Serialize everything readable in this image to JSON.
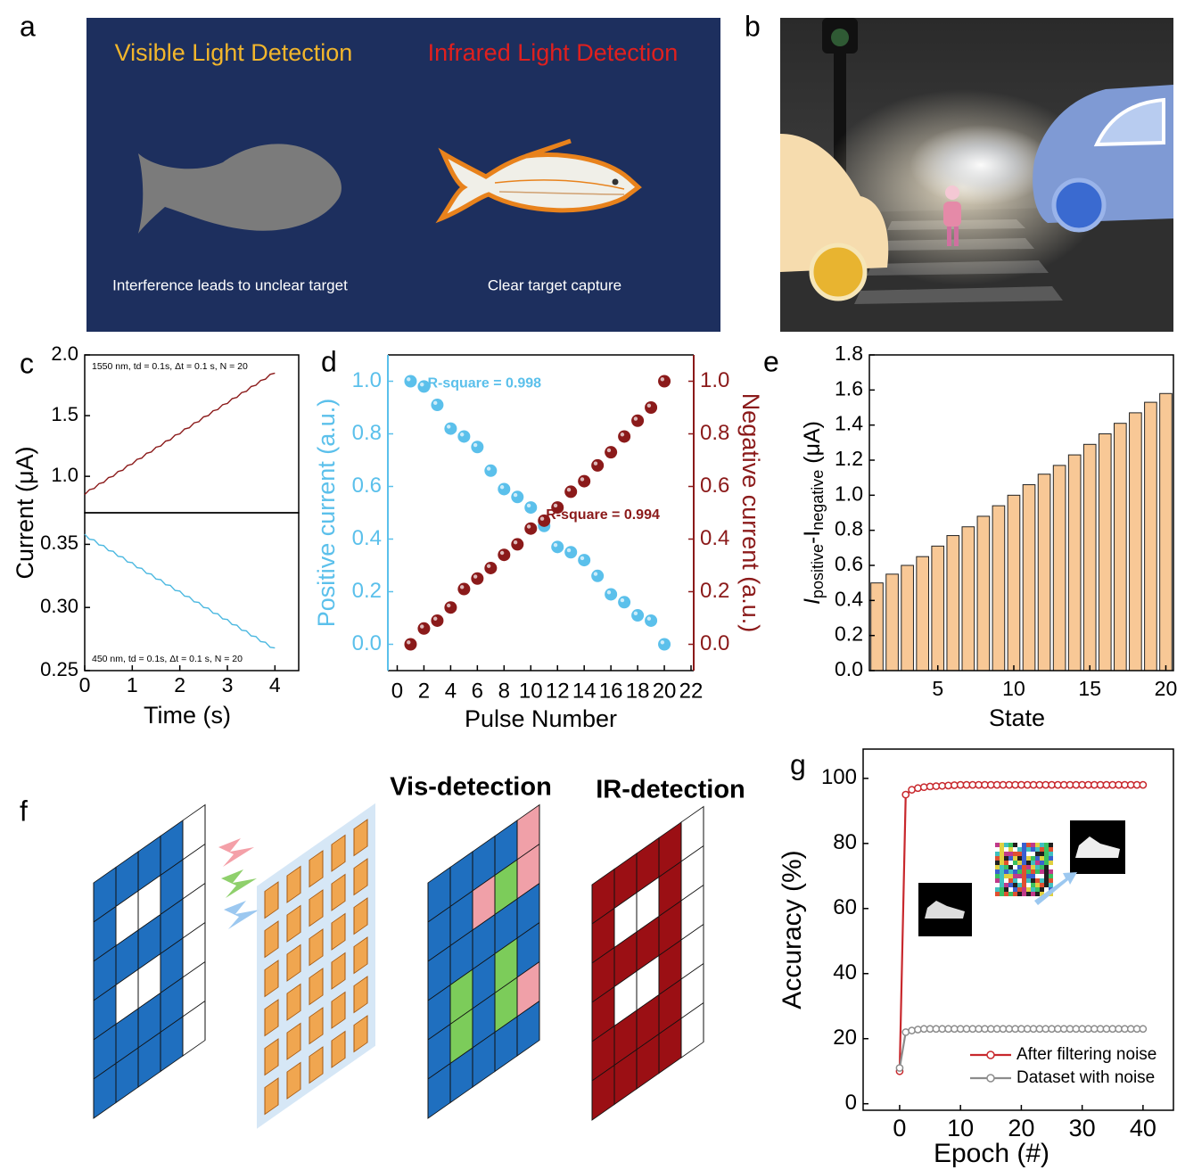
{
  "panel_labels": [
    "a",
    "b",
    "c",
    "d",
    "e",
    "f",
    "g"
  ],
  "panel_a": {
    "left_title": "Visible Light Detection",
    "right_title": "Infrared Light Detection",
    "left_caption": "Interference leads to unclear target",
    "right_caption": "Clear target capture"
  },
  "panel_f": {
    "vis_title": "Vis-detection",
    "ir_title": "IR-detection"
  },
  "chart_data": [
    {
      "type": "line",
      "x_label": "Time (s)",
      "y_label": "Current (μA)",
      "x": [
        0,
        0.1,
        0.2,
        0.3,
        0.4,
        0.5,
        0.6,
        0.7,
        0.8,
        0.9,
        1,
        1.1,
        1.2,
        1.3,
        1.4,
        1.5,
        1.6,
        1.7,
        1.8,
        1.9,
        2,
        2.1,
        2.2,
        2.3,
        2.4,
        2.5,
        2.6,
        2.7,
        2.8,
        2.9,
        3,
        3.1,
        3.2,
        3.3,
        3.4,
        3.5,
        3.6,
        3.7,
        3.8,
        3.9,
        4
      ],
      "xlim": [
        0,
        4.5
      ],
      "xticks": [
        0,
        1,
        2,
        3,
        4
      ],
      "panels": [
        {
          "annotation": "1550 nm, td = 0.1s, Δt = 0.1 s, N = 20",
          "ylim": [
            0.7,
            2.0
          ],
          "yticks": [
            {
              "value": 1,
              "label": "1.0"
            },
            1.5,
            {
              "value": 2,
              "label": "2.0"
            }
          ],
          "series": [
            {
              "color": "#8b1a1a",
              "values": [
                0.85,
                0.89,
                0.9,
                0.94,
                0.95,
                0.99,
                1.0,
                1.04,
                1.05,
                1.09,
                1.1,
                1.14,
                1.15,
                1.19,
                1.2,
                1.24,
                1.25,
                1.29,
                1.3,
                1.34,
                1.35,
                1.39,
                1.4,
                1.44,
                1.45,
                1.49,
                1.5,
                1.54,
                1.55,
                1.59,
                1.6,
                1.64,
                1.65,
                1.69,
                1.7,
                1.74,
                1.75,
                1.79,
                1.8,
                1.84,
                1.85
              ]
            }
          ]
        },
        {
          "annotation": "450 nm, td = 0.1s, Δt = 0.1 s, N = 20",
          "ylim": [
            0.25,
            0.375
          ],
          "yticks": [
            0.25,
            {
              "value": 0.3,
              "label": "0.30"
            },
            0.35
          ],
          "series": [
            {
              "color": "#4bb8e0",
              "values": [
                0.358,
                0.354,
                0.3535,
                0.3495,
                0.349,
                0.345,
                0.3445,
                0.3405,
                0.34,
                0.336,
                0.3355,
                0.3315,
                0.331,
                0.327,
                0.3265,
                0.3225,
                0.322,
                0.318,
                0.3175,
                0.3135,
                0.313,
                0.309,
                0.3085,
                0.3045,
                0.304,
                0.3,
                0.2995,
                0.2955,
                0.295,
                0.291,
                0.2905,
                0.2865,
                0.286,
                0.282,
                0.2815,
                0.2775,
                0.277,
                0.273,
                0.2725,
                0.2685,
                0.268
              ]
            }
          ]
        }
      ]
    },
    {
      "type": "scatter",
      "x_label": "Pulse Number",
      "y_label": "Positive current (a.u.)",
      "y2_label": "Negative current (a.u.)",
      "x": [
        1,
        2,
        3,
        4,
        5,
        6,
        7,
        8,
        9,
        10,
        11,
        12,
        13,
        14,
        15,
        16,
        17,
        18,
        19,
        20
      ],
      "xlim": [
        -0.7,
        22.2
      ],
      "xticks": [
        0,
        2,
        4,
        6,
        8,
        10,
        12,
        14,
        16,
        18,
        20,
        22
      ],
      "ylim": [
        -0.1,
        1.1
      ],
      "yticks": [
        {
          "value": 0,
          "label": "0.0"
        },
        0.2,
        0.4,
        0.6,
        0.8,
        {
          "value": 1,
          "label": "1.0"
        }
      ],
      "y2lim": [
        -0.1,
        1.1
      ],
      "y2ticks": [
        {
          "value": 0,
          "label": "0.0"
        },
        0.2,
        0.4,
        0.6,
        0.8,
        {
          "value": 1,
          "label": "1.0"
        }
      ],
      "series": [
        {
          "color": "#5bc0eb",
          "annotation": "R-square = 0.998",
          "values": [
            1.0,
            0.98,
            0.91,
            0.82,
            0.79,
            0.75,
            0.66,
            0.59,
            0.56,
            0.52,
            0.45,
            0.37,
            0.35,
            0.32,
            0.26,
            0.19,
            0.16,
            0.11,
            0.09,
            0.0
          ]
        },
        {
          "color": "#8b1a1a",
          "axis": "y2",
          "annotation": "R-square = 0.994",
          "values": [
            0.0,
            0.06,
            0.09,
            0.14,
            0.21,
            0.25,
            0.29,
            0.34,
            0.38,
            0.44,
            0.47,
            0.52,
            0.58,
            0.62,
            0.68,
            0.73,
            0.79,
            0.85,
            0.9,
            1.0
          ]
        }
      ]
    },
    {
      "type": "bar",
      "x_label": "State",
      "y_label_parts": [
        "I",
        "positive",
        "-I",
        "negative",
        " (μA)"
      ],
      "x": [
        1,
        2,
        3,
        4,
        5,
        6,
        7,
        8,
        9,
        10,
        11,
        12,
        13,
        14,
        15,
        16,
        17,
        18,
        19,
        20
      ],
      "values": [
        0.5,
        0.55,
        0.6,
        0.65,
        0.71,
        0.77,
        0.82,
        0.88,
        0.94,
        1.0,
        1.06,
        1.12,
        1.17,
        1.23,
        1.29,
        1.35,
        1.41,
        1.47,
        1.53,
        1.58
      ],
      "color": "#f8c896",
      "xlim": [
        0.5,
        20.5
      ],
      "xticks": [
        5,
        10,
        15,
        20
      ],
      "ylim": [
        0,
        1.8
      ],
      "yticks": [
        {
          "value": 0,
          "label": "0.0"
        },
        0.2,
        0.4,
        0.6,
        0.8,
        {
          "value": 1,
          "label": "1.0"
        },
        1.2,
        1.4,
        1.6,
        1.8
      ]
    },
    {
      "type": "line",
      "x_label": "Epoch (#)",
      "y_label": "Accuracy (%)",
      "x": [
        0,
        1,
        2,
        3,
        4,
        5,
        6,
        7,
        8,
        9,
        10,
        11,
        12,
        13,
        14,
        15,
        16,
        17,
        18,
        19,
        20,
        21,
        22,
        23,
        24,
        25,
        26,
        27,
        28,
        29,
        30,
        31,
        32,
        33,
        34,
        35,
        36,
        37,
        38,
        39,
        40
      ],
      "xlim": [
        -6,
        45
      ],
      "xticks": [
        0,
        10,
        20,
        30,
        40
      ],
      "ylim": [
        -2,
        109
      ],
      "yticks": [
        0,
        20,
        40,
        60,
        80,
        100
      ],
      "legend": "lower right",
      "series": [
        {
          "name": "After filtering noise",
          "color": "#c8282d",
          "values": [
            10,
            95,
            96.5,
            97,
            97.3,
            97.5,
            97.6,
            97.7,
            97.8,
            97.9,
            98,
            98,
            98,
            98,
            98,
            98,
            98,
            98,
            98,
            98,
            98,
            98,
            98,
            98,
            98,
            98,
            98,
            98,
            98,
            98,
            98,
            98,
            98,
            98,
            98,
            98,
            98,
            98,
            98,
            98,
            98
          ]
        },
        {
          "name": "Dataset with noise",
          "color": "#8c8c8c",
          "values": [
            11,
            22,
            22.5,
            22.8,
            23,
            23,
            23,
            23,
            23,
            23,
            23,
            23,
            23,
            23,
            23,
            23,
            23,
            23,
            23,
            23,
            23,
            23,
            23,
            23,
            23,
            23,
            23,
            23,
            23,
            23,
            23,
            23,
            23,
            23,
            23,
            23,
            23,
            23,
            23,
            23,
            23
          ]
        }
      ]
    }
  ]
}
